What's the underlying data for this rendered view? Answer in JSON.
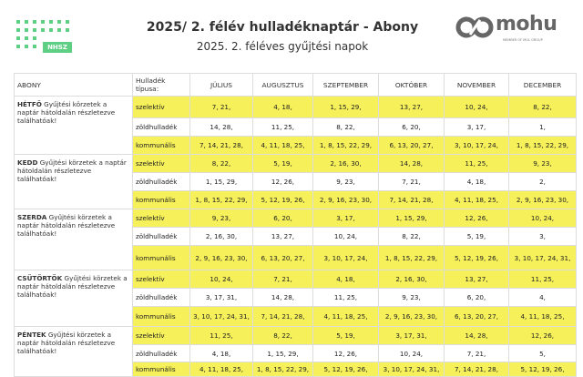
{
  "header": {
    "title": "2025/ 2.  félév hulladéknaptár - Abony",
    "subtitle": "2025. 2.  féléves gyűjtési napok",
    "left_logo": "NHSZ",
    "right_logo": "mohu",
    "right_logo_sub": "MEMBER OF MOL GROUP",
    "highlight_color": "#f6f05a",
    "logo_green": "#5fcf84"
  },
  "table": {
    "col_place": "ABONY",
    "col_type": "Hulladék típusa:",
    "months": [
      "JÚLIUS",
      "AUGUSZTUS",
      "SZEPTEMBER",
      "OKTÓBER",
      "NOVEMBER",
      "DECEMBER"
    ],
    "days": [
      {
        "day": "HÉTFŐ",
        "note": " Gyűjtési körzetek a naptár hátoldalán részletezve találhatóak!",
        "rows": [
          {
            "type": "szelektív",
            "values": [
              "7, 21,",
              "4, 18,",
              "1, 15, 29,",
              "13, 27,",
              "10, 24,",
              "8, 22,"
            ]
          },
          {
            "type": "zöldhulladék",
            "values": [
              "14, 28,",
              "11, 25,",
              "8, 22,",
              "6, 20,",
              "3, 17,",
              "1,"
            ]
          },
          {
            "type": "kommunális",
            "values": [
              "7, 14, 21, 28,",
              "4, 11, 18, 25,",
              "1, 8, 15, 22, 29,",
              "6, 13, 20, 27,",
              "3, 10, 17, 24,",
              "1, 8, 15, 22, 29,"
            ]
          }
        ]
      },
      {
        "day": "KEDD",
        "note": " Gyűjtési körzetek a naptár hátoldalán részletezve találhatóak!",
        "rows": [
          {
            "type": "szelektív",
            "values": [
              "8, 22,",
              "5, 19,",
              "2, 16, 30,",
              "14, 28,",
              "11, 25,",
              "9, 23,"
            ]
          },
          {
            "type": "zöldhulladék",
            "values": [
              "1, 15, 29,",
              "12, 26,",
              "9, 23,",
              "7, 21,",
              "4, 18,",
              "2,"
            ]
          },
          {
            "type": "kommunális",
            "values": [
              "1, 8, 15, 22, 29,",
              "5, 12, 19, 26,",
              "2, 9, 16, 23, 30,",
              "7, 14, 21, 28,",
              "4, 11, 18, 25,",
              "2, 9, 16, 23, 30,"
            ]
          }
        ]
      },
      {
        "day": "SZERDA",
        "note": " Gyűjtési körzetek a naptár hátoldalán részletezve találhatóak!",
        "rows": [
          {
            "type": "szelektív",
            "values": [
              "9, 23,",
              "6, 20,",
              "3, 17,",
              "1, 15, 29,",
              "12, 26,",
              "10, 24,"
            ]
          },
          {
            "type": "zöldhulladék",
            "values": [
              "2, 16, 30,",
              "13, 27,",
              "10, 24,",
              "8, 22,",
              "5, 19,",
              "3,"
            ]
          },
          {
            "type": "kommunális",
            "values": [
              "2, 9, 16, 23, 30,",
              "6, 13, 20, 27,",
              "3, 10, 17, 24,",
              "1, 8, 15, 22, 29,",
              "5, 12, 19, 26,",
              "3, 10, 17, 24, 31,"
            ]
          }
        ]
      },
      {
        "day": "CSÜTÖRTÖK",
        "note": " Gyűjtési körzetek a naptár hátoldalán részletezve találhatóak!",
        "rows": [
          {
            "type": "szelektív",
            "values": [
              "10, 24,",
              "7, 21,",
              "4, 18,",
              "2, 16, 30,",
              "13, 27,",
              "11, 25,"
            ]
          },
          {
            "type": "zöldhulladék",
            "values": [
              "3, 17, 31,",
              "14, 28,",
              "11, 25,",
              "9, 23,",
              "6, 20,",
              "4,"
            ]
          },
          {
            "type": "kommunális",
            "values": [
              "3, 10, 17, 24, 31,",
              "7, 14, 21, 28,",
              "4, 11, 18, 25,",
              "2, 9, 16, 23, 30,",
              "6, 13, 20, 27,",
              "4, 11, 18, 25,"
            ]
          }
        ]
      },
      {
        "day": "PÉNTEK",
        "note": " Gyűjtési körzetek a naptár hátoldalán részletezve találhatóak!",
        "rows": [
          {
            "type": "szelektív",
            "values": [
              "11, 25,",
              "8, 22,",
              "5, 19,",
              "3, 17, 31,",
              "14, 28,",
              "12, 26,"
            ]
          },
          {
            "type": "zöldhulladék",
            "values": [
              "4, 18,",
              "1, 15, 29,",
              "12, 26,",
              "10, 24,",
              "7, 21,",
              "5,"
            ]
          },
          {
            "type": "kommunális",
            "values": [
              "4, 11, 18, 25,",
              "1, 8, 15, 22, 29,",
              "5, 12, 19, 26,",
              "3, 10, 17, 24, 31,",
              "7, 14, 21, 28,",
              "5, 12, 19, 26,"
            ]
          }
        ]
      }
    ]
  }
}
